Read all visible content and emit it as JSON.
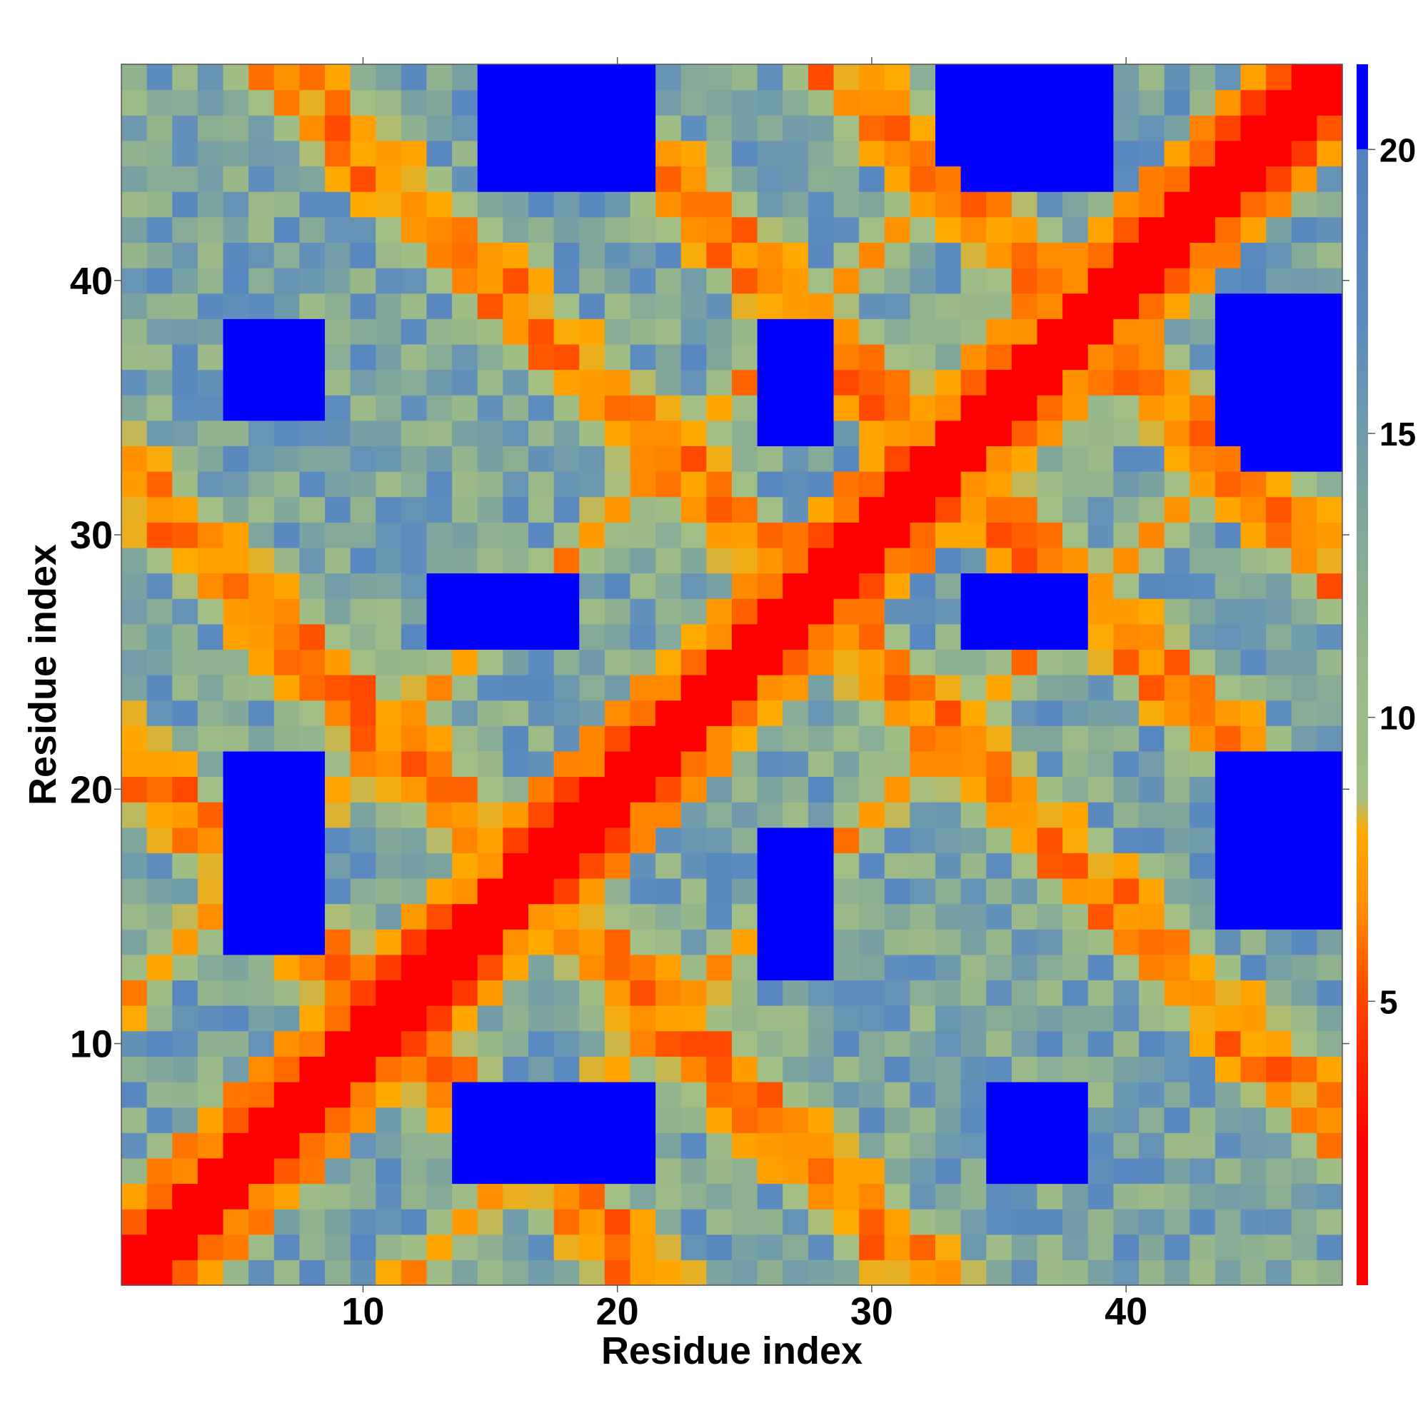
{
  "chart_data": {
    "type": "heatmap",
    "title": "",
    "xlabel": "Residue index",
    "ylabel": "Residue index",
    "n_residues": 48,
    "x_range": [
      1,
      48
    ],
    "y_range": [
      1,
      48
    ],
    "x_ticks": [
      10,
      20,
      30,
      40
    ],
    "y_ticks": [
      10,
      20,
      30,
      40
    ],
    "x_tick_labels": [
      "10",
      "20",
      "30",
      "40"
    ],
    "y_tick_labels": [
      "10",
      "20",
      "30",
      "40"
    ],
    "grid": false,
    "colorbar": {
      "placement": "right",
      "range": [
        0,
        21.5
      ],
      "ticks": [
        5,
        10,
        15,
        20
      ],
      "tick_labels": [
        "5",
        "10",
        "15",
        "20"
      ],
      "stops": [
        {
          "value": 0,
          "color": "#ff0000"
        },
        {
          "value": 2.5,
          "color": "#ff0000"
        },
        {
          "value": 5,
          "color": "#ff4400"
        },
        {
          "value": 6.5,
          "color": "#ff8800"
        },
        {
          "value": 8,
          "color": "#ffaa00"
        },
        {
          "value": 8.6,
          "color": "#a3bf85"
        },
        {
          "value": 11,
          "color": "#9ab888"
        },
        {
          "value": 14,
          "color": "#7ba3a0"
        },
        {
          "value": 17,
          "color": "#5b8bc0"
        },
        {
          "value": 20,
          "color": "#5580c0"
        },
        {
          "value": 20.01,
          "color": "#0000ff"
        },
        {
          "value": 21.5,
          "color": "#0000ff"
        }
      ]
    },
    "pattern": "symmetric residue distance map with repeating motif; near-zero diagonal, short-distance off-diagonal stripes every 11 residues",
    "diagonal_value": 1,
    "stripe_period": 11,
    "blue_blocks": [
      {
        "x": [
          15,
          21
        ],
        "y": [
          44,
          48
        ],
        "value": 21
      },
      {
        "x": [
          34,
          39
        ],
        "y": [
          44,
          48
        ],
        "value": 21
      },
      {
        "x": [
          5,
          8
        ],
        "y": [
          35,
          38
        ],
        "value": 21
      },
      {
        "x": [
          45,
          48
        ],
        "y": [
          33,
          38
        ],
        "value": 21
      },
      {
        "x": [
          26,
          28
        ],
        "y": [
          34,
          38
        ],
        "value": 21
      },
      {
        "x": [
          15,
          18
        ],
        "y": [
          26,
          28
        ],
        "value": 21
      },
      {
        "x": [
          35,
          38
        ],
        "y": [
          26,
          28
        ],
        "value": 21
      },
      {
        "x": [
          5,
          8
        ],
        "y": [
          14,
          21
        ],
        "value": 21
      },
      {
        "x": [
          45,
          48
        ],
        "y": [
          15,
          19
        ],
        "value": 21
      },
      {
        "x": [
          26,
          28
        ],
        "y": [
          13,
          18
        ],
        "value": 21
      },
      {
        "x": [
          15,
          21
        ],
        "y": [
          5,
          8
        ],
        "value": 21
      },
      {
        "x": [
          35,
          38
        ],
        "y": [
          5,
          8
        ],
        "value": 21
      }
    ]
  }
}
